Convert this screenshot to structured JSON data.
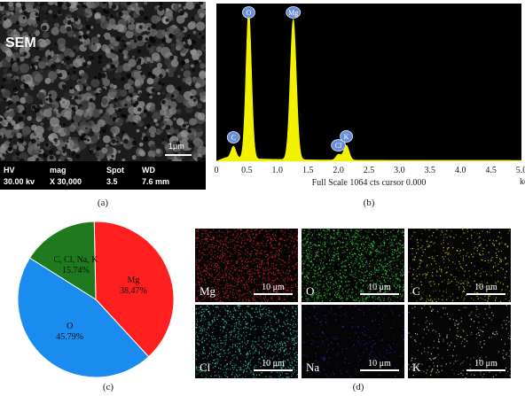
{
  "captions": {
    "a": "(a)",
    "b": "(b)",
    "c": "(c)",
    "d": "(d)"
  },
  "sem": {
    "label": "SEM",
    "scale_label": "1μm",
    "info": [
      {
        "head": "HV",
        "value": "30.00 kv"
      },
      {
        "head": "mag",
        "value": "X 30,000"
      },
      {
        "head": "Spot",
        "value": "3.5"
      },
      {
        "head": "WD",
        "value": "7.6 mm"
      }
    ]
  },
  "chart_data": [
    {
      "type": "line",
      "panel": "b",
      "title": "",
      "xlabel": "Full Scale 1064 cts cursor 0.000",
      "x_unit": "kev",
      "xlim": [
        0,
        5.0
      ],
      "ylim": [
        0,
        1064
      ],
      "x_ticks": [
        "0",
        "0.5",
        "1.0",
        "1.5",
        "2.0",
        "2.5",
        "3.0",
        "3.5",
        "4.0",
        "4.5",
        "5.0"
      ],
      "fill_color": "#f2f200",
      "background": "#000000",
      "peaks": [
        {
          "label": "C",
          "x": 0.28,
          "y": 80
        },
        {
          "label": "O",
          "x": 0.53,
          "y": 1000
        },
        {
          "label": "Mg",
          "x": 1.26,
          "y": 950
        },
        {
          "label": "Cl",
          "x": 2.0,
          "y": 38
        },
        {
          "label": "K",
          "x": 2.13,
          "y": 100
        }
      ]
    },
    {
      "type": "pie",
      "panel": "c",
      "slices": [
        {
          "label": "Mg",
          "value": 38.47,
          "text": "38.47%",
          "color": "#ff1f1f"
        },
        {
          "label": "O",
          "value": 45.79,
          "text": "45.79%",
          "color": "#1a8cf0"
        },
        {
          "label": "C, Cl, Na, K",
          "value": 15.74,
          "text": "15.74%",
          "color": "#1f7a1f"
        }
      ]
    }
  ],
  "maps": [
    {
      "element": "Mg",
      "scale": "10 μm",
      "color": "#d4202a",
      "density": 1300
    },
    {
      "element": "O",
      "scale": "10 μm",
      "color": "#36c23a",
      "density": 1300
    },
    {
      "element": "C",
      "scale": "10 μm",
      "color": "#d8d820",
      "density": 420
    },
    {
      "element": "Cl",
      "scale": "10 μm",
      "color": "#3fc8c0",
      "density": 900
    },
    {
      "element": "Na",
      "scale": "10 μm",
      "color": "#2a2ab8",
      "density": 260
    },
    {
      "element": "K",
      "scale": "10 μm",
      "color": "#d8d8b0",
      "density": 260
    }
  ]
}
